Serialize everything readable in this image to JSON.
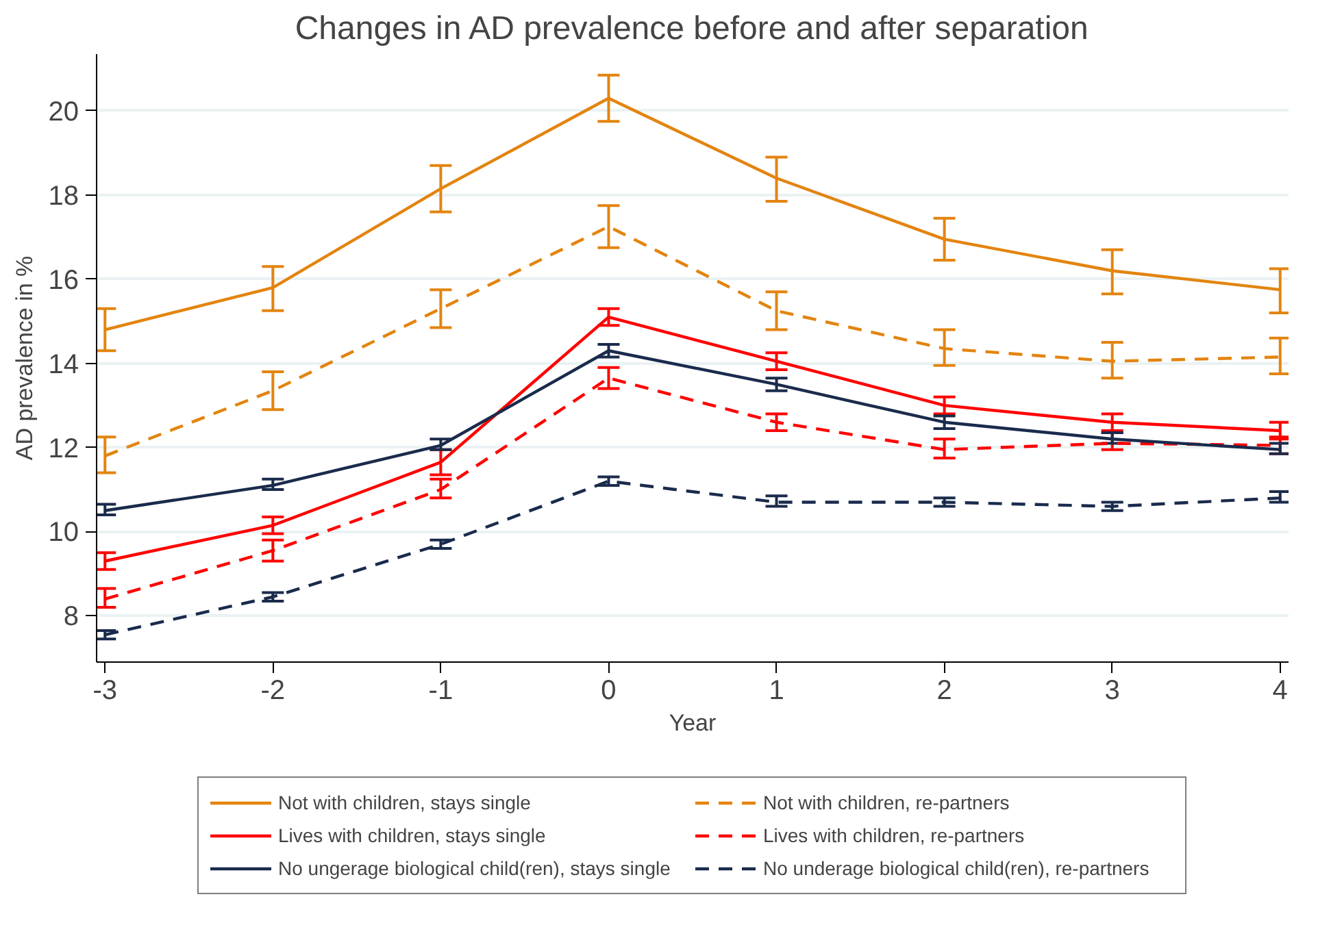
{
  "chart_data": {
    "type": "line",
    "title": "Changes in AD prevalence before and after separation",
    "xlabel": "Year",
    "ylabel": "AD prevalence in %",
    "x": [
      -3,
      -2,
      -1,
      0,
      1,
      2,
      3,
      4
    ],
    "xlim": [
      -3.05,
      4.05
    ],
    "xticks": [
      -3,
      -2,
      -1,
      0,
      1,
      2,
      3,
      4
    ],
    "ylim": [
      6.9,
      21.35
    ],
    "yticks": [
      8,
      10,
      12,
      14,
      16,
      18,
      20
    ],
    "grid": "y",
    "legend": "bottom",
    "marker": "none",
    "series": [
      {
        "name": "Not with children, stays single",
        "color": "#e3840f",
        "line_style": "solid",
        "values": [
          14.8,
          15.8,
          18.15,
          20.3,
          18.4,
          16.95,
          16.2,
          15.75
        ],
        "errors": [
          [
            14.3,
            15.3
          ],
          [
            15.25,
            16.3
          ],
          [
            17.6,
            18.7
          ],
          [
            19.75,
            20.85
          ],
          [
            17.85,
            18.9
          ],
          [
            16.45,
            17.45
          ],
          [
            15.65,
            16.7
          ],
          [
            15.2,
            16.25
          ]
        ]
      },
      {
        "name": "Not with children, re-partners",
        "color": "#e3840f",
        "line_style": "dashed",
        "values": [
          11.8,
          13.35,
          15.3,
          17.25,
          15.25,
          14.35,
          14.05,
          14.15
        ],
        "errors": [
          [
            11.4,
            12.25
          ],
          [
            12.9,
            13.8
          ],
          [
            14.85,
            15.75
          ],
          [
            16.75,
            17.75
          ],
          [
            14.8,
            15.7
          ],
          [
            13.95,
            14.8
          ],
          [
            13.65,
            14.5
          ],
          [
            13.75,
            14.6
          ]
        ]
      },
      {
        "name": "Lives with children, stays single",
        "color": "#ff0000",
        "line_style": "solid",
        "values": [
          9.3,
          10.15,
          11.65,
          15.1,
          14.05,
          13.0,
          12.6,
          12.4
        ],
        "errors": [
          [
            9.1,
            9.5
          ],
          [
            9.95,
            10.35
          ],
          [
            11.35,
            11.95
          ],
          [
            14.9,
            15.3
          ],
          [
            13.85,
            14.25
          ],
          [
            12.8,
            13.2
          ],
          [
            12.4,
            12.8
          ],
          [
            12.2,
            12.6
          ]
        ]
      },
      {
        "name": "Lives with children, re-partners",
        "color": "#ff0000",
        "line_style": "dashed",
        "values": [
          8.4,
          9.55,
          11.0,
          13.65,
          12.6,
          11.95,
          12.1,
          12.05
        ],
        "errors": [
          [
            8.2,
            8.65
          ],
          [
            9.3,
            9.8
          ],
          [
            10.8,
            11.25
          ],
          [
            13.4,
            13.9
          ],
          [
            12.4,
            12.8
          ],
          [
            11.75,
            12.2
          ],
          [
            11.95,
            12.35
          ],
          [
            11.85,
            12.25
          ]
        ]
      },
      {
        "name": "No ungerage biological child(ren), stays single",
        "color": "#1a2b4c",
        "line_style": "solid",
        "values": [
          10.5,
          11.1,
          12.05,
          14.3,
          13.5,
          12.6,
          12.2,
          11.95
        ],
        "errors": [
          [
            10.4,
            10.65
          ],
          [
            11.0,
            11.25
          ],
          [
            11.95,
            12.2
          ],
          [
            14.15,
            14.45
          ],
          [
            13.35,
            13.65
          ],
          [
            12.45,
            12.75
          ],
          [
            12.1,
            12.35
          ],
          [
            11.85,
            12.1
          ]
        ]
      },
      {
        "name": "No underage biological child(ren), re-partners",
        "color": "#1a2b4c",
        "line_style": "dashed",
        "values": [
          7.55,
          8.45,
          9.7,
          11.2,
          10.7,
          10.7,
          10.6,
          10.8
        ],
        "errors": [
          [
            7.45,
            7.65
          ],
          [
            8.35,
            8.55
          ],
          [
            9.6,
            9.8
          ],
          [
            11.1,
            11.3
          ],
          [
            10.6,
            10.85
          ],
          [
            10.6,
            10.8
          ],
          [
            10.5,
            10.7
          ],
          [
            10.7,
            10.95
          ]
        ]
      }
    ]
  }
}
